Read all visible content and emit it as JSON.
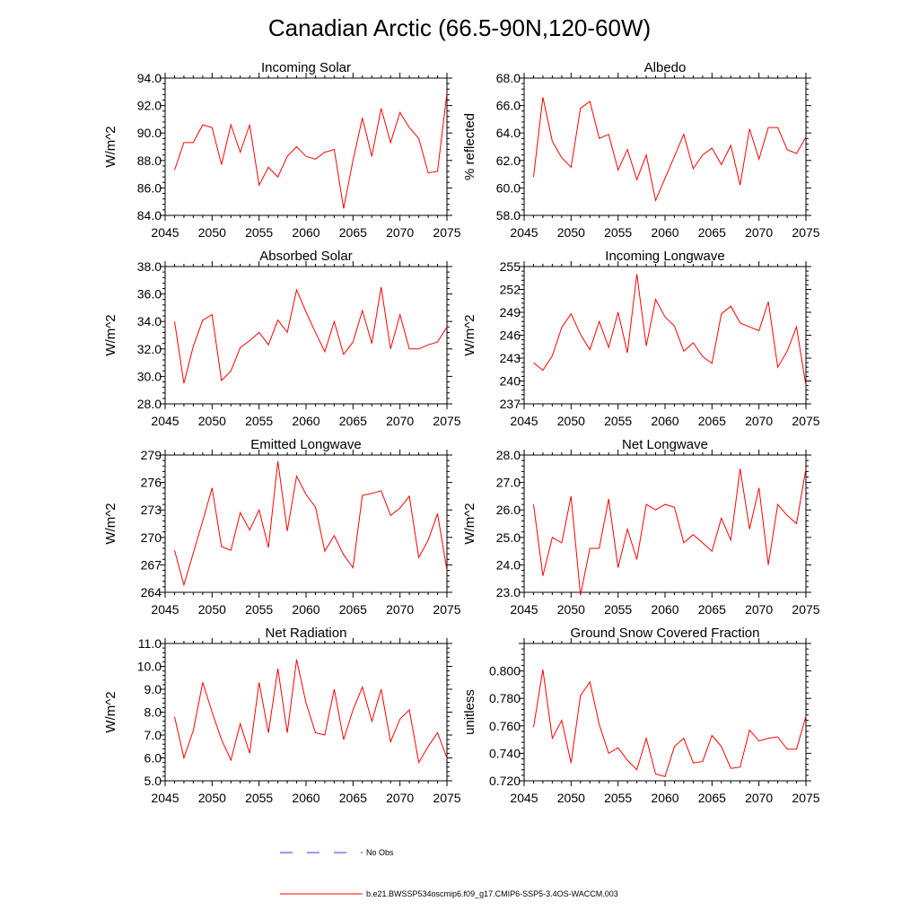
{
  "figure_title": "Canadian Arctic (66.5-90N,120-60W)",
  "legend": {
    "entries": [
      {
        "label": "No Obs",
        "color": "#3333ff",
        "style": "dashed"
      },
      {
        "label": "b.e21.BWSSP534oscmip6.f09_g17.CMIP6-SSP5-3.4OS-WACCM.003",
        "color": "#ff0000",
        "style": "solid"
      }
    ]
  },
  "chart_data": [
    {
      "type": "line",
      "title": "Incoming Solar",
      "xlabel": "",
      "ylabel": "W/m^2",
      "xlim": [
        2045,
        2075
      ],
      "ylim": [
        84.0,
        94.0
      ],
      "xticks": [
        2045,
        2050,
        2055,
        2060,
        2065,
        2070,
        2075
      ],
      "yticks": [
        "84.0",
        "86.0",
        "88.0",
        "90.0",
        "92.0",
        "94.0"
      ],
      "x": [
        2046,
        2047,
        2048,
        2049,
        2050,
        2051,
        2052,
        2053,
        2054,
        2055,
        2056,
        2057,
        2058,
        2059,
        2060,
        2061,
        2062,
        2063,
        2064,
        2065,
        2066,
        2067,
        2068,
        2069,
        2070,
        2071,
        2072,
        2073,
        2074,
        2075
      ],
      "series": [
        {
          "color": "#ff0000",
          "values": [
            87.3,
            89.3,
            89.3,
            90.6,
            90.4,
            87.7,
            90.6,
            88.6,
            90.6,
            86.2,
            87.5,
            86.8,
            88.3,
            89.0,
            88.3,
            88.1,
            88.6,
            88.8,
            84.5,
            88.0,
            91.1,
            88.3,
            91.8,
            89.3,
            91.5,
            90.4,
            89.6,
            87.1,
            87.2,
            92.9
          ]
        }
      ]
    },
    {
      "type": "line",
      "title": "Albedo",
      "xlabel": "",
      "ylabel": "% reflected",
      "xlim": [
        2045,
        2075
      ],
      "ylim": [
        58.0,
        68.0
      ],
      "xticks": [
        2045,
        2050,
        2055,
        2060,
        2065,
        2070,
        2075
      ],
      "yticks": [
        "58.0",
        "60.0",
        "62.0",
        "64.0",
        "66.0",
        "68.0"
      ],
      "x": [
        2046,
        2047,
        2048,
        2049,
        2050,
        2051,
        2052,
        2053,
        2054,
        2055,
        2056,
        2057,
        2058,
        2059,
        2060,
        2061,
        2062,
        2063,
        2064,
        2065,
        2066,
        2067,
        2068,
        2069,
        2070,
        2071,
        2072,
        2073,
        2074,
        2075
      ],
      "series": [
        {
          "color": "#ff0000",
          "values": [
            60.8,
            66.6,
            63.4,
            62.2,
            61.5,
            65.8,
            66.3,
            63.6,
            63.9,
            61.3,
            62.8,
            60.6,
            62.4,
            59.1,
            60.7,
            62.3,
            63.9,
            61.4,
            62.4,
            62.9,
            61.7,
            63.1,
            60.2,
            64.3,
            62.1,
            64.4,
            64.4,
            62.8,
            62.5,
            63.7
          ]
        }
      ]
    },
    {
      "type": "line",
      "title": "Absorbed Solar",
      "xlabel": "",
      "ylabel": "W/m^2",
      "xlim": [
        2045,
        2075
      ],
      "ylim": [
        28.0,
        38.0
      ],
      "xticks": [
        2045,
        2050,
        2055,
        2060,
        2065,
        2070,
        2075
      ],
      "yticks": [
        "28.0",
        "30.0",
        "32.0",
        "34.0",
        "36.0",
        "38.0"
      ],
      "x": [
        2046,
        2047,
        2048,
        2049,
        2050,
        2051,
        2052,
        2053,
        2054,
        2055,
        2056,
        2057,
        2058,
        2059,
        2060,
        2061,
        2062,
        2063,
        2064,
        2065,
        2066,
        2067,
        2068,
        2069,
        2070,
        2071,
        2072,
        2073,
        2074,
        2075
      ],
      "series": [
        {
          "color": "#ff0000",
          "values": [
            34.0,
            29.5,
            32.2,
            34.1,
            34.5,
            29.7,
            30.4,
            32.1,
            32.6,
            33.2,
            32.3,
            34.1,
            33.2,
            36.3,
            34.7,
            33.2,
            31.8,
            34.0,
            31.6,
            32.5,
            34.8,
            32.4,
            36.5,
            32.0,
            34.5,
            32.0,
            32.0,
            32.3,
            32.5,
            33.6
          ]
        }
      ]
    },
    {
      "type": "line",
      "title": "Incoming Longwave",
      "xlabel": "",
      "ylabel": "W/m^2",
      "xlim": [
        2045,
        2075
      ],
      "ylim": [
        237,
        255
      ],
      "xticks": [
        2045,
        2050,
        2055,
        2060,
        2065,
        2070,
        2075
      ],
      "yticks": [
        "237",
        "240",
        "243",
        "246",
        "249",
        "252",
        "255"
      ],
      "x": [
        2046,
        2047,
        2048,
        2049,
        2050,
        2051,
        2052,
        2053,
        2054,
        2055,
        2056,
        2057,
        2058,
        2059,
        2060,
        2061,
        2062,
        2063,
        2064,
        2065,
        2066,
        2067,
        2068,
        2069,
        2070,
        2071,
        2072,
        2073,
        2074,
        2075
      ],
      "series": [
        {
          "color": "#ff0000",
          "values": [
            242.4,
            241.4,
            243.3,
            247.0,
            248.8,
            246.1,
            244.1,
            247.8,
            244.4,
            249.0,
            243.7,
            254.0,
            244.6,
            250.7,
            248.4,
            247.2,
            243.9,
            245.0,
            243.2,
            242.3,
            248.8,
            249.8,
            247.6,
            247.1,
            246.6,
            250.4,
            241.8,
            243.9,
            247.1,
            239.4
          ]
        }
      ]
    },
    {
      "type": "line",
      "title": "Emitted Longwave",
      "xlabel": "",
      "ylabel": "W/m^2",
      "xlim": [
        2045,
        2075
      ],
      "ylim": [
        264,
        279
      ],
      "xticks": [
        2045,
        2050,
        2055,
        2060,
        2065,
        2070,
        2075
      ],
      "yticks": [
        "264",
        "267",
        "270",
        "273",
        "276",
        "279"
      ],
      "x": [
        2046,
        2047,
        2048,
        2049,
        2050,
        2051,
        2052,
        2053,
        2054,
        2055,
        2056,
        2057,
        2058,
        2059,
        2060,
        2061,
        2062,
        2063,
        2064,
        2065,
        2066,
        2067,
        2068,
        2069,
        2070,
        2071,
        2072,
        2073,
        2074,
        2075
      ],
      "series": [
        {
          "color": "#ff0000",
          "values": [
            268.6,
            264.8,
            268.3,
            271.8,
            275.4,
            269.0,
            268.6,
            272.7,
            270.8,
            273.0,
            268.9,
            278.3,
            270.7,
            276.7,
            274.7,
            273.3,
            268.5,
            270.2,
            268.1,
            266.7,
            274.6,
            274.8,
            275.1,
            272.4,
            273.2,
            274.5,
            267.8,
            269.7,
            272.6,
            266.4
          ]
        }
      ]
    },
    {
      "type": "line",
      "title": "Net Longwave",
      "xlabel": "",
      "ylabel": "W/m^2",
      "xlim": [
        2045,
        2075
      ],
      "ylim": [
        23.0,
        28.0
      ],
      "xticks": [
        2045,
        2050,
        2055,
        2060,
        2065,
        2070,
        2075
      ],
      "yticks": [
        "23.0",
        "24.0",
        "25.0",
        "26.0",
        "27.0",
        "28.0"
      ],
      "x": [
        2046,
        2047,
        2048,
        2049,
        2050,
        2051,
        2052,
        2053,
        2054,
        2055,
        2056,
        2057,
        2058,
        2059,
        2060,
        2061,
        2062,
        2063,
        2064,
        2065,
        2066,
        2067,
        2068,
        2069,
        2070,
        2071,
        2072,
        2073,
        2074,
        2075
      ],
      "series": [
        {
          "color": "#ff0000",
          "values": [
            26.2,
            23.6,
            25.0,
            24.8,
            26.5,
            22.9,
            24.6,
            24.6,
            26.4,
            23.9,
            25.3,
            24.2,
            26.2,
            26.0,
            26.2,
            26.1,
            24.8,
            25.1,
            24.8,
            24.5,
            25.7,
            24.9,
            27.5,
            25.3,
            26.8,
            24.0,
            26.2,
            25.8,
            25.5,
            27.5
          ]
        }
      ]
    },
    {
      "type": "line",
      "title": "Net Radiation",
      "xlabel": "",
      "ylabel": "W/m^2",
      "xlim": [
        2045,
        2075
      ],
      "ylim": [
        5.0,
        11.0
      ],
      "xticks": [
        2045,
        2050,
        2055,
        2060,
        2065,
        2070,
        2075
      ],
      "yticks": [
        "5.0",
        "6.0",
        "7.0",
        "8.0",
        "9.0",
        "10.0",
        "11.0"
      ],
      "x": [
        2046,
        2047,
        2048,
        2049,
        2050,
        2051,
        2052,
        2053,
        2054,
        2055,
        2056,
        2057,
        2058,
        2059,
        2060,
        2061,
        2062,
        2063,
        2064,
        2065,
        2066,
        2067,
        2068,
        2069,
        2070,
        2071,
        2072,
        2073,
        2074,
        2075
      ],
      "series": [
        {
          "color": "#ff0000",
          "values": [
            7.8,
            6.0,
            7.2,
            9.3,
            8.0,
            6.8,
            5.9,
            7.5,
            6.2,
            9.3,
            7.1,
            9.9,
            7.1,
            10.3,
            8.4,
            7.1,
            7.0,
            9.0,
            6.8,
            8.1,
            9.1,
            7.6,
            9.0,
            6.7,
            7.7,
            8.1,
            5.8,
            6.5,
            7.1,
            6.0
          ]
        }
      ]
    },
    {
      "type": "line",
      "title": "Ground Snow Covered Fraction",
      "xlabel": "",
      "ylabel": "unitless",
      "xlim": [
        2045,
        2075
      ],
      "ylim": [
        0.72,
        0.82
      ],
      "xticks": [
        2045,
        2050,
        2055,
        2060,
        2065,
        2070,
        2075
      ],
      "yticks": [
        "0.720",
        "0.740",
        "0.760",
        "0.780",
        "0.800"
      ],
      "x": [
        2046,
        2047,
        2048,
        2049,
        2050,
        2051,
        2052,
        2053,
        2054,
        2055,
        2056,
        2057,
        2058,
        2059,
        2060,
        2061,
        2062,
        2063,
        2064,
        2065,
        2066,
        2067,
        2068,
        2069,
        2070,
        2071,
        2072,
        2073,
        2074,
        2075
      ],
      "series": [
        {
          "color": "#ff0000",
          "values": [
            0.759,
            0.801,
            0.751,
            0.764,
            0.733,
            0.782,
            0.792,
            0.761,
            0.74,
            0.744,
            0.735,
            0.728,
            0.751,
            0.725,
            0.723,
            0.745,
            0.751,
            0.733,
            0.734,
            0.753,
            0.745,
            0.729,
            0.73,
            0.757,
            0.749,
            0.751,
            0.752,
            0.743,
            0.743,
            0.767
          ]
        }
      ]
    }
  ]
}
